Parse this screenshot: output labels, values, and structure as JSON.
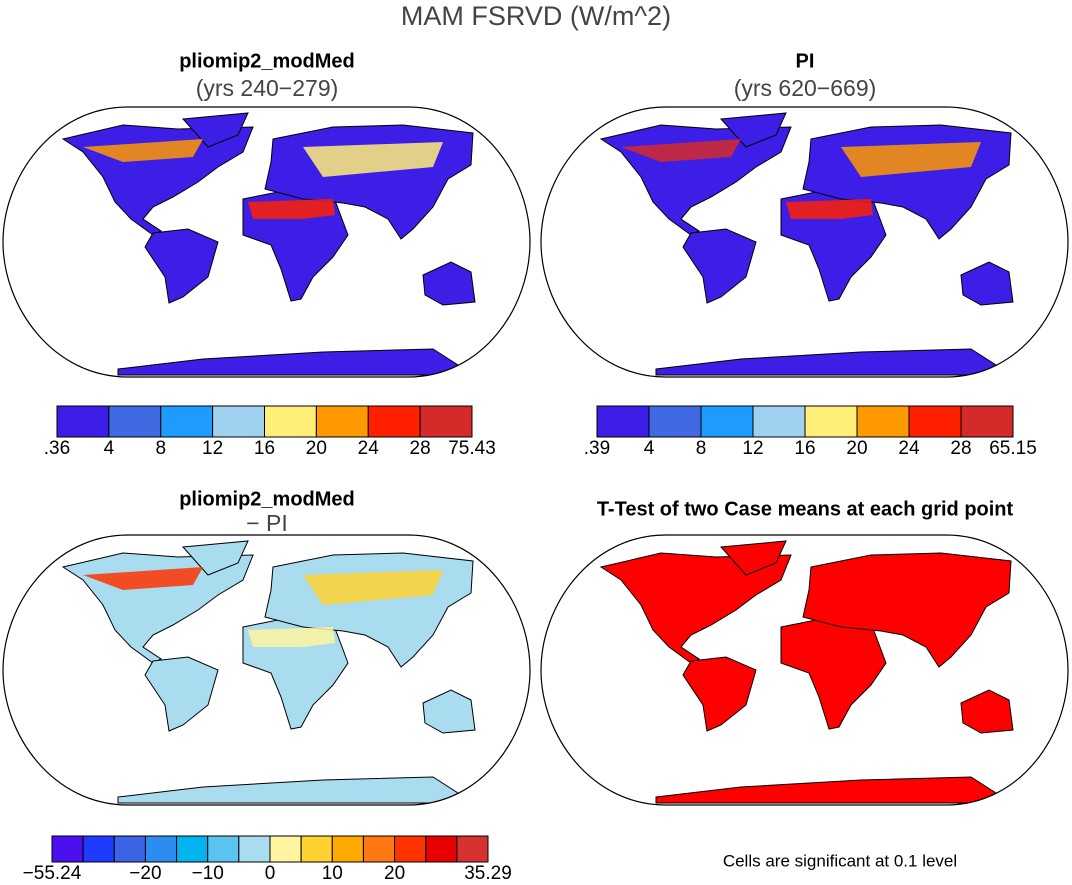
{
  "title": "MAM FSRVD (W/m^2)",
  "panels": [
    {
      "title": "pliomip2_modMed",
      "subtitle": "(yrs 240−279)",
      "colorbar": {
        "colors": [
          "#3c1ee6",
          "#4169e1",
          "#1e9bff",
          "#a0d2f0",
          "#ffef78",
          "#ff9900",
          "#ff2000",
          "#d42a2a"
        ],
        "labels": [
          ".36",
          "4",
          "8",
          "12",
          "16",
          "20",
          "24",
          "28",
          "75.43"
        ]
      }
    },
    {
      "title": "PI",
      "subtitle": "(yrs 620−669)",
      "colorbar": {
        "colors": [
          "#3c1ee6",
          "#4169e1",
          "#1e9bff",
          "#a0d2f0",
          "#ffef78",
          "#ff9900",
          "#ff2000",
          "#d42a2a"
        ],
        "labels": [
          ".39",
          "4",
          "8",
          "12",
          "16",
          "20",
          "24",
          "28",
          "65.15"
        ]
      }
    },
    {
      "title": "pliomip2_modMed",
      "subtitle": "− PI",
      "colorbar": {
        "colors": [
          "#4b0ff0",
          "#1e3cff",
          "#3c64e6",
          "#2d8cf0",
          "#00b4f0",
          "#5ac3f0",
          "#aadcf0",
          "#fff5a0",
          "#ffd232",
          "#ffaa00",
          "#ff7814",
          "#ff3200",
          "#e60000",
          "#d73232"
        ],
        "labels": [
          "−55.24",
          null,
          null,
          "−20",
          null,
          "−10",
          null,
          "0",
          null,
          "10",
          null,
          "20",
          null,
          null,
          "35.29"
        ]
      }
    },
    {
      "title": "T-Test of two Case means at each grid point",
      "footnote": "Cells are significant at 0.1 level"
    }
  ]
}
